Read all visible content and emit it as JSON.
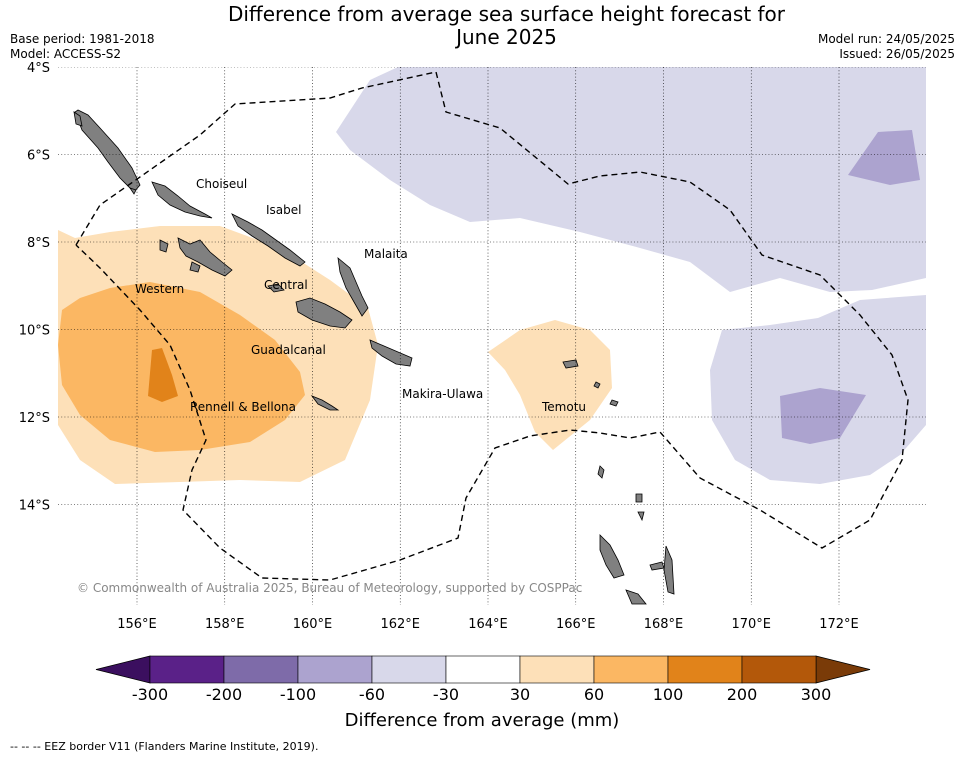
{
  "title": {
    "line1": "Difference from average sea surface height forecast for",
    "line2": "June 2025"
  },
  "meta_left": {
    "base_period": "Base period: 1981-2018",
    "model": "Model: ACCESS-S2"
  },
  "meta_right": {
    "model_run": "Model run: 24/05/2025",
    "issued": "Issued: 26/05/2025"
  },
  "axes": {
    "lat_labels": [
      "4°S",
      "6°S",
      "8°S",
      "10°S",
      "12°S",
      "14°S"
    ],
    "lon_labels": [
      "156°E",
      "158°E",
      "160°E",
      "162°E",
      "164°E",
      "166°E",
      "168°E",
      "170°E",
      "172°E"
    ],
    "lat_range": [
      -16.3,
      -4.0
    ],
    "lon_range": [
      154.2,
      174.0
    ],
    "grid": true
  },
  "provinces": [
    "Choiseul",
    "Isabel",
    "Malaita",
    "Western",
    "Central",
    "Guadalcanal",
    "Makira-Ulawa",
    "Rennell & Bellona",
    "Temotu"
  ],
  "copyright": "© Commonwealth of Australia 2025, Bureau of Meteorology, supported by COSPPac",
  "colorbar": {
    "ticks": [
      "-300",
      "-200",
      "-100",
      "-60",
      "-30",
      "30",
      "60",
      "100",
      "200",
      "300"
    ],
    "colors": [
      "#5a2188",
      "#7e6ba9",
      "#aca3cf",
      "#d8d8ea",
      "#ffffff",
      "#fde0b8",
      "#fbb763",
      "#e1831a",
      "#b3580a"
    ],
    "extend_low_color": "#3b0f5f",
    "extend_high_color": "#7a3b08",
    "label": "Difference from average (mm)"
  },
  "land_color": "#808080",
  "footer": "--  --  -- EEZ border V11 (Flanders Marine Institute, 2019)."
}
